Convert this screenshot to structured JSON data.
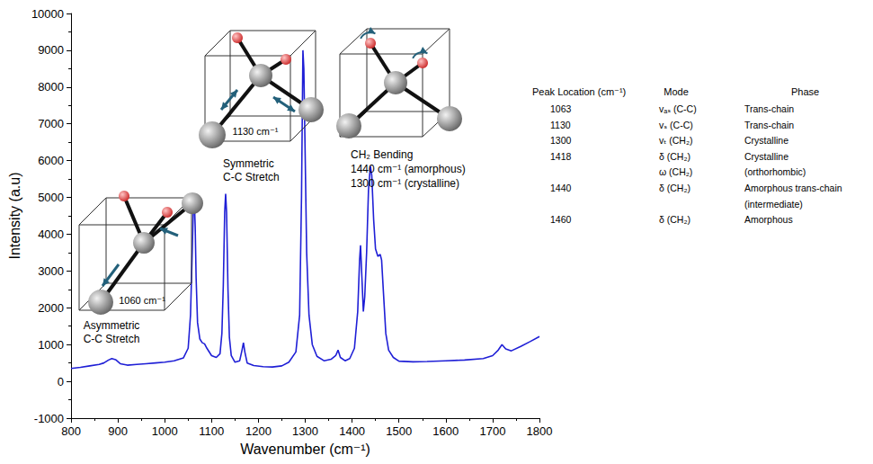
{
  "chart_data": {
    "type": "line",
    "x_label": "Wavenumber (cm⁻¹)",
    "y_label": "Intensity (a.u)",
    "color": "#1f1fd6",
    "grid": false,
    "xlim": [
      800,
      1800
    ],
    "xticks": [
      800,
      900,
      1000,
      1100,
      1200,
      1300,
      1400,
      1500,
      1600,
      1700,
      1800
    ],
    "ylim": [
      -1000,
      10000
    ],
    "yticks": [
      -1000,
      0,
      1000,
      2000,
      3000,
      4000,
      5000,
      6000,
      7000,
      8000,
      9000,
      10000
    ],
    "x": [
      800,
      820,
      840,
      860,
      870,
      880,
      887,
      895,
      905,
      920,
      940,
      960,
      980,
      1000,
      1020,
      1040,
      1050,
      1055,
      1058,
      1061,
      1063,
      1065,
      1067,
      1070,
      1075,
      1080,
      1085,
      1090,
      1100,
      1110,
      1118,
      1122,
      1125,
      1128,
      1130,
      1132,
      1135,
      1138,
      1142,
      1150,
      1160,
      1165,
      1168,
      1171,
      1176,
      1190,
      1210,
      1230,
      1250,
      1265,
      1280,
      1288,
      1292,
      1295,
      1297,
      1300,
      1303,
      1308,
      1315,
      1325,
      1340,
      1355,
      1365,
      1370,
      1375,
      1385,
      1395,
      1405,
      1412,
      1416,
      1418,
      1421,
      1424,
      1427,
      1431,
      1435,
      1439,
      1442,
      1446,
      1450,
      1455,
      1460,
      1463,
      1467,
      1472,
      1478,
      1488,
      1500,
      1530,
      1560,
      1600,
      1640,
      1680,
      1700,
      1712,
      1720,
      1728,
      1740,
      1760,
      1780,
      1800
    ],
    "values": [
      350,
      380,
      420,
      460,
      500,
      580,
      620,
      590,
      480,
      440,
      460,
      480,
      500,
      520,
      560,
      640,
      900,
      1800,
      3200,
      4700,
      5000,
      4200,
      2800,
      1600,
      1150,
      1050,
      1020,
      900,
      700,
      650,
      750,
      1300,
      2600,
      4600,
      5100,
      4600,
      2500,
      1200,
      700,
      520,
      560,
      850,
      1050,
      800,
      500,
      430,
      400,
      390,
      420,
      520,
      800,
      1800,
      5000,
      9000,
      8500,
      6000,
      3500,
      1800,
      1000,
      680,
      560,
      600,
      700,
      850,
      650,
      560,
      620,
      900,
      1900,
      3300,
      3700,
      2800,
      1900,
      2300,
      3500,
      5200,
      5850,
      5600,
      4400,
      3600,
      3400,
      3450,
      3300,
      2400,
      1300,
      850,
      650,
      550,
      530,
      540,
      560,
      580,
      620,
      700,
      850,
      1000,
      880,
      830,
      950,
      1080,
      1220
    ],
    "annotations": [
      {
        "label": "1060 cm⁻¹",
        "caption": [
          "Asymmetric",
          "C-C Stretch"
        ]
      },
      {
        "label": "1130 cm⁻¹",
        "caption": [
          "Symmetric",
          "C-C Stretch"
        ]
      },
      {
        "caption": [
          "CH₂ Bending",
          "1440 cm⁻¹ (amorphous)",
          "1300 cm⁻¹ (crystalline)"
        ]
      }
    ],
    "table": {
      "header": [
        "Peak Location (cm⁻¹)",
        "Mode",
        "Phase"
      ],
      "rows": [
        [
          1063,
          [
            "vₐₛ (C-C)"
          ],
          [
            "Trans-chain"
          ]
        ],
        [
          1130,
          [
            "vₛ (C-C)"
          ],
          [
            "Trans-chain"
          ]
        ],
        [
          1300,
          [
            "vₜ (CH₂)"
          ],
          [
            "Crystalline"
          ]
        ],
        [
          1418,
          [
            "δ (CH₂)",
            "ω (CH₂)"
          ],
          [
            "Crystalline",
            "(orthorhombic)"
          ]
        ],
        [
          1440,
          [
            "δ (CH₂)"
          ],
          [
            "Amorphous trans-chain",
            "(intermediate)"
          ]
        ],
        [
          1460,
          [
            "δ (CH₂)"
          ],
          [
            "Amorphous"
          ]
        ]
      ]
    }
  }
}
